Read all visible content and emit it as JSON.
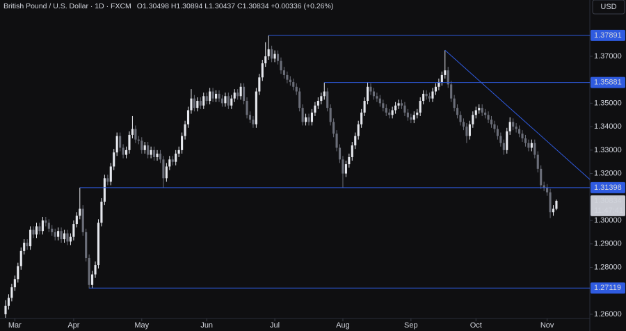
{
  "chart_data": {
    "type": "candlestick",
    "title": "British Pound / U.S. Dollar · 1D · FXCM",
    "subtitle": "O1.30498 H1.30894 L1.30437 C1.30834 +0.00336 (+0.26%)",
    "currency": "USD",
    "up_color": "#e6e8ee",
    "down_color": "#6b6e79",
    "line_color": "#2f5be0",
    "grid": false,
    "xlim": [
      -1.8,
      188.8
    ],
    "ylim": [
      1.2582,
      1.394
    ],
    "xticks": [
      {
        "value": 3,
        "label": "Mar"
      },
      {
        "value": 22,
        "label": "Apr"
      },
      {
        "value": 44,
        "label": "May"
      },
      {
        "value": 65,
        "label": "Jun"
      },
      {
        "value": 87,
        "label": "Jul"
      },
      {
        "value": 109,
        "label": "Aug"
      },
      {
        "value": 131,
        "label": "Sep"
      },
      {
        "value": 152,
        "label": "Oct"
      },
      {
        "value": 175,
        "label": "Nov"
      }
    ],
    "yticks": [
      {
        "value": 1.37,
        "label": "1.37000"
      },
      {
        "value": 1.35,
        "label": "1.35000"
      },
      {
        "value": 1.34,
        "label": "1.34000"
      },
      {
        "value": 1.33,
        "label": "1.33000"
      },
      {
        "value": 1.32,
        "label": "1.32000"
      },
      {
        "value": 1.3,
        "label": "1.30000"
      },
      {
        "value": 1.29,
        "label": "1.29000"
      },
      {
        "value": 1.28,
        "label": "1.28000"
      },
      {
        "value": 1.26,
        "label": "1.26000"
      }
    ],
    "levels": [
      {
        "value": 1.37891,
        "label": "1.37891"
      },
      {
        "value": 1.35881,
        "label": "1.35881"
      },
      {
        "value": 1.31398,
        "label": "1.31398"
      },
      {
        "value": 1.27119,
        "label": "1.27119"
      }
    ],
    "trendline": [
      {
        "x": 142,
        "y": 1.3726
      },
      {
        "x": 188.8,
        "y": 1.3175
      }
    ],
    "last_price": {
      "value": 1.30834,
      "label": "1.30834"
    },
    "countdown": "11:47:41",
    "candles": [
      [
        1.26,
        1.266,
        1.2585,
        1.2636
      ],
      [
        1.2636,
        1.2685,
        1.262,
        1.267
      ],
      [
        1.267,
        1.273,
        1.2655,
        1.2715
      ],
      [
        1.2715,
        1.2765,
        1.27,
        1.275
      ],
      [
        1.275,
        1.282,
        1.2735,
        1.2805
      ],
      [
        1.2805,
        1.2885,
        1.279,
        1.287
      ],
      [
        1.287,
        1.292,
        1.2855,
        1.2905
      ],
      [
        1.2905,
        1.292,
        1.2875,
        1.289
      ],
      [
        1.289,
        1.2975,
        1.2875,
        1.296
      ],
      [
        1.296,
        1.2975,
        1.2925,
        1.294
      ],
      [
        1.294,
        1.299,
        1.2925,
        1.2975
      ],
      [
        1.2975,
        1.299,
        1.294,
        1.2955
      ],
      [
        1.2955,
        1.3015,
        1.294,
        1.3
      ],
      [
        1.3,
        1.3015,
        1.2975,
        1.299
      ],
      [
        1.299,
        1.3005,
        1.295,
        1.2965
      ],
      [
        1.2965,
        1.298,
        1.2935,
        1.295
      ],
      [
        1.295,
        1.2965,
        1.2915,
        1.293
      ],
      [
        1.293,
        1.297,
        1.2915,
        1.2955
      ],
      [
        1.2955,
        1.297,
        1.2905,
        1.292
      ],
      [
        1.292,
        1.296,
        1.2905,
        1.2945
      ],
      [
        1.2945,
        1.296,
        1.2895,
        1.291
      ],
      [
        1.291,
        1.2945,
        1.2895,
        1.293
      ],
      [
        1.293,
        1.3,
        1.2915,
        1.2985
      ],
      [
        1.2985,
        1.3035,
        1.297,
        1.302
      ],
      [
        1.302,
        1.314,
        1.3005,
        1.305
      ],
      [
        1.305,
        1.3065,
        1.2935,
        1.295
      ],
      [
        1.295,
        1.2965,
        1.2825,
        1.284
      ],
      [
        1.284,
        1.2855,
        1.271,
        1.2725
      ],
      [
        1.2725,
        1.2785,
        1.271,
        1.277
      ],
      [
        1.277,
        1.2825,
        1.2755,
        1.281
      ],
      [
        1.281,
        1.3005,
        1.2795,
        1.299
      ],
      [
        1.299,
        1.3095,
        1.2975,
        1.308
      ],
      [
        1.308,
        1.3195,
        1.3065,
        1.318
      ],
      [
        1.318,
        1.3195,
        1.315,
        1.3165
      ],
      [
        1.3165,
        1.3245,
        1.315,
        1.323
      ],
      [
        1.323,
        1.3305,
        1.3215,
        1.329
      ],
      [
        1.329,
        1.3375,
        1.3275,
        1.336
      ],
      [
        1.336,
        1.3375,
        1.3295,
        1.331
      ],
      [
        1.331,
        1.3325,
        1.3265,
        1.328
      ],
      [
        1.328,
        1.3315,
        1.3265,
        1.33
      ],
      [
        1.33,
        1.338,
        1.3285,
        1.3365
      ],
      [
        1.3365,
        1.3445,
        1.335,
        1.339
      ],
      [
        1.339,
        1.3405,
        1.333,
        1.3345
      ],
      [
        1.3345,
        1.336,
        1.3325,
        1.334
      ],
      [
        1.334,
        1.3355,
        1.3285,
        1.33
      ],
      [
        1.33,
        1.3335,
        1.3285,
        1.332
      ],
      [
        1.332,
        1.3335,
        1.3265,
        1.328
      ],
      [
        1.328,
        1.3315,
        1.3265,
        1.33
      ],
      [
        1.33,
        1.3315,
        1.3255,
        1.327
      ],
      [
        1.327,
        1.33,
        1.3255,
        1.3285
      ],
      [
        1.3285,
        1.33,
        1.3245,
        1.326
      ],
      [
        1.326,
        1.3275,
        1.314,
        1.318
      ],
      [
        1.318,
        1.3245,
        1.3165,
        1.323
      ],
      [
        1.323,
        1.3275,
        1.3215,
        1.326
      ],
      [
        1.326,
        1.3275,
        1.3235,
        1.325
      ],
      [
        1.325,
        1.33,
        1.3235,
        1.3285
      ],
      [
        1.3285,
        1.3315,
        1.327,
        1.33
      ],
      [
        1.33,
        1.3375,
        1.3285,
        1.336
      ],
      [
        1.336,
        1.3425,
        1.3345,
        1.341
      ],
      [
        1.341,
        1.3485,
        1.3395,
        1.347
      ],
      [
        1.347,
        1.356,
        1.3455,
        1.352
      ],
      [
        1.352,
        1.3535,
        1.3465,
        1.348
      ],
      [
        1.348,
        1.3525,
        1.3465,
        1.351
      ],
      [
        1.351,
        1.3525,
        1.3475,
        1.349
      ],
      [
        1.349,
        1.3545,
        1.3475,
        1.353
      ],
      [
        1.353,
        1.3545,
        1.3495,
        1.351
      ],
      [
        1.351,
        1.3565,
        1.3495,
        1.355
      ],
      [
        1.355,
        1.3565,
        1.3505,
        1.352
      ],
      [
        1.352,
        1.3555,
        1.3505,
        1.354
      ],
      [
        1.354,
        1.3555,
        1.3505,
        1.352
      ],
      [
        1.352,
        1.3535,
        1.3485,
        1.35
      ],
      [
        1.35,
        1.3545,
        1.3485,
        1.353
      ],
      [
        1.353,
        1.3545,
        1.3475,
        1.349
      ],
      [
        1.349,
        1.3535,
        1.3475,
        1.352
      ],
      [
        1.352,
        1.356,
        1.3505,
        1.3545
      ],
      [
        1.3545,
        1.356,
        1.3515,
        1.353
      ],
      [
        1.353,
        1.3585,
        1.3515,
        1.357
      ],
      [
        1.357,
        1.3585,
        1.3495,
        1.351
      ],
      [
        1.351,
        1.3525,
        1.3435,
        1.345
      ],
      [
        1.345,
        1.3465,
        1.3415,
        1.343
      ],
      [
        1.343,
        1.3445,
        1.3395,
        1.341
      ],
      [
        1.341,
        1.3565,
        1.3395,
        1.355
      ],
      [
        1.355,
        1.3625,
        1.3535,
        1.361
      ],
      [
        1.361,
        1.3685,
        1.3595,
        1.367
      ],
      [
        1.367,
        1.376,
        1.3655,
        1.37
      ],
      [
        1.37,
        1.3789,
        1.3685,
        1.373
      ],
      [
        1.373,
        1.3745,
        1.3675,
        1.369
      ],
      [
        1.369,
        1.3725,
        1.3675,
        1.371
      ],
      [
        1.371,
        1.3725,
        1.3665,
        1.368
      ],
      [
        1.368,
        1.3695,
        1.3625,
        1.364
      ],
      [
        1.364,
        1.3655,
        1.3605,
        1.362
      ],
      [
        1.362,
        1.3635,
        1.3585,
        1.36
      ],
      [
        1.36,
        1.3615,
        1.3575,
        1.359
      ],
      [
        1.359,
        1.3605,
        1.3555,
        1.357
      ],
      [
        1.357,
        1.3585,
        1.3535,
        1.355
      ],
      [
        1.355,
        1.3565,
        1.3465,
        1.348
      ],
      [
        1.348,
        1.3495,
        1.3405,
        1.342
      ],
      [
        1.342,
        1.3455,
        1.3405,
        1.344
      ],
      [
        1.344,
        1.3455,
        1.3405,
        1.342
      ],
      [
        1.342,
        1.3475,
        1.3405,
        1.346
      ],
      [
        1.346,
        1.3505,
        1.3445,
        1.349
      ],
      [
        1.349,
        1.3525,
        1.3475,
        1.351
      ],
      [
        1.351,
        1.3545,
        1.3495,
        1.353
      ],
      [
        1.353,
        1.3588,
        1.3515,
        1.355
      ],
      [
        1.355,
        1.3565,
        1.3465,
        1.348
      ],
      [
        1.348,
        1.3495,
        1.3405,
        1.342
      ],
      [
        1.342,
        1.3435,
        1.3355,
        1.337
      ],
      [
        1.337,
        1.3385,
        1.3295,
        1.331
      ],
      [
        1.331,
        1.3325,
        1.3245,
        1.326
      ],
      [
        1.326,
        1.3275,
        1.314,
        1.32
      ],
      [
        1.32,
        1.3255,
        1.3185,
        1.324
      ],
      [
        1.324,
        1.3285,
        1.3225,
        1.327
      ],
      [
        1.327,
        1.3335,
        1.3255,
        1.332
      ],
      [
        1.332,
        1.3375,
        1.3305,
        1.336
      ],
      [
        1.336,
        1.3425,
        1.3345,
        1.341
      ],
      [
        1.341,
        1.3475,
        1.3395,
        1.346
      ],
      [
        1.346,
        1.3525,
        1.3445,
        1.351
      ],
      [
        1.351,
        1.359,
        1.3495,
        1.357
      ],
      [
        1.357,
        1.3585,
        1.3535,
        1.355
      ],
      [
        1.355,
        1.3565,
        1.3515,
        1.353
      ],
      [
        1.353,
        1.3545,
        1.3505,
        1.352
      ],
      [
        1.352,
        1.3535,
        1.3485,
        1.35
      ],
      [
        1.35,
        1.3515,
        1.3465,
        1.348
      ],
      [
        1.348,
        1.3495,
        1.3445,
        1.346
      ],
      [
        1.346,
        1.3475,
        1.3435,
        1.345
      ],
      [
        1.345,
        1.3485,
        1.3435,
        1.347
      ],
      [
        1.347,
        1.3505,
        1.3455,
        1.349
      ],
      [
        1.349,
        1.3515,
        1.3475,
        1.35
      ],
      [
        1.35,
        1.3515,
        1.3475,
        1.349
      ],
      [
        1.349,
        1.3505,
        1.3445,
        1.346
      ],
      [
        1.346,
        1.3475,
        1.3425,
        1.344
      ],
      [
        1.344,
        1.3455,
        1.3415,
        1.343
      ],
      [
        1.343,
        1.3465,
        1.3415,
        1.345
      ],
      [
        1.345,
        1.3475,
        1.3435,
        1.346
      ],
      [
        1.346,
        1.3525,
        1.3445,
        1.351
      ],
      [
        1.351,
        1.3555,
        1.3495,
        1.354
      ],
      [
        1.354,
        1.3555,
        1.3515,
        1.353
      ],
      [
        1.353,
        1.3545,
        1.3505,
        1.352
      ],
      [
        1.352,
        1.3565,
        1.3505,
        1.355
      ],
      [
        1.355,
        1.3585,
        1.3535,
        1.357
      ],
      [
        1.357,
        1.3605,
        1.3555,
        1.359
      ],
      [
        1.359,
        1.3635,
        1.3575,
        1.362
      ],
      [
        1.362,
        1.3726,
        1.3605,
        1.364
      ],
      [
        1.364,
        1.3655,
        1.3565,
        1.358
      ],
      [
        1.358,
        1.3595,
        1.3505,
        1.352
      ],
      [
        1.352,
        1.3535,
        1.3465,
        1.348
      ],
      [
        1.348,
        1.3495,
        1.3435,
        1.345
      ],
      [
        1.345,
        1.3465,
        1.3405,
        1.342
      ],
      [
        1.342,
        1.3435,
        1.3385,
        1.34
      ],
      [
        1.34,
        1.3415,
        1.333,
        1.336
      ],
      [
        1.336,
        1.3425,
        1.3345,
        1.341
      ],
      [
        1.341,
        1.3465,
        1.3395,
        1.345
      ],
      [
        1.345,
        1.3485,
        1.3435,
        1.347
      ],
      [
        1.347,
        1.3495,
        1.3455,
        1.348
      ],
      [
        1.348,
        1.3495,
        1.3445,
        1.346
      ],
      [
        1.346,
        1.3475,
        1.3435,
        1.345
      ],
      [
        1.345,
        1.3465,
        1.3415,
        1.343
      ],
      [
        1.343,
        1.3445,
        1.3395,
        1.341
      ],
      [
        1.341,
        1.3425,
        1.3375,
        1.339
      ],
      [
        1.339,
        1.3405,
        1.3345,
        1.336
      ],
      [
        1.336,
        1.3375,
        1.3315,
        1.333
      ],
      [
        1.333,
        1.3345,
        1.328,
        1.33
      ],
      [
        1.33,
        1.3395,
        1.3285,
        1.338
      ],
      [
        1.338,
        1.344,
        1.3365,
        1.342
      ],
      [
        1.342,
        1.3435,
        1.3385,
        1.34
      ],
      [
        1.34,
        1.3415,
        1.3375,
        1.339
      ],
      [
        1.339,
        1.3405,
        1.3355,
        1.337
      ],
      [
        1.337,
        1.3385,
        1.3335,
        1.335
      ],
      [
        1.335,
        1.3365,
        1.3315,
        1.333
      ],
      [
        1.333,
        1.3345,
        1.3295,
        1.331
      ],
      [
        1.331,
        1.3345,
        1.3295,
        1.333
      ],
      [
        1.333,
        1.3345,
        1.3265,
        1.328
      ],
      [
        1.328,
        1.3295,
        1.3205,
        1.322
      ],
      [
        1.322,
        1.3235,
        1.3135,
        1.315
      ],
      [
        1.315,
        1.3165,
        1.3125,
        1.314
      ],
      [
        1.314,
        1.3155,
        1.3105,
        1.312
      ],
      [
        1.312,
        1.3135,
        1.301,
        1.3035
      ],
      [
        1.3035,
        1.3065,
        1.302,
        1.305
      ],
      [
        1.30498,
        1.30894,
        1.30437,
        1.30834
      ]
    ]
  }
}
